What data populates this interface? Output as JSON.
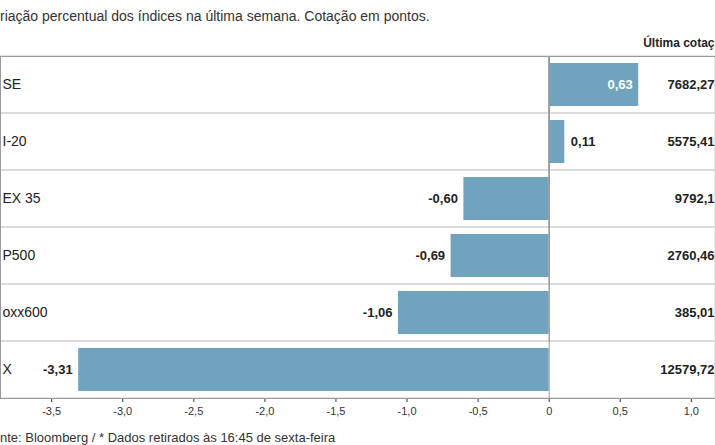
{
  "chart_data": {
    "type": "bar",
    "orientation": "horizontal",
    "subtitle": "riação percentual dos índices na última semana. Cotação em pontos.",
    "caption": "nte: Bloomberg / * Dados retirados às 16:45 de sexta-feira",
    "categories": [
      "SE",
      "I-20",
      "EX 35",
      "P500",
      "oxx600",
      "X"
    ],
    "values": [
      0.63,
      0.11,
      -0.6,
      -0.69,
      -1.06,
      -3.31
    ],
    "value_labels": [
      "0,63",
      "0,11",
      "-0,60",
      "-0,69",
      "-1,06",
      "-3,31"
    ],
    "data_labels": true,
    "last_quote_header": "Última cotaç",
    "last_quote": [
      "7682,27",
      "5575,41",
      "9792,1",
      "2760,46",
      "385,01",
      "12579,72"
    ],
    "color": "#6fa3be",
    "xlim": [
      -3.86,
      1.17
    ],
    "xticks": [
      {
        "value": -3.5,
        "label": "-3,5"
      },
      {
        "value": -3.0,
        "label": "-3,0"
      },
      {
        "value": -2.5,
        "label": "-2,5"
      },
      {
        "value": -2.0,
        "label": "-2,0"
      },
      {
        "value": -1.5,
        "label": "-1,5"
      },
      {
        "value": -1.0,
        "label": "-1,0"
      },
      {
        "value": -0.5,
        "label": "-0,5"
      },
      0,
      {
        "value": 0.5,
        "label": "0,5"
      },
      {
        "value": 1.0,
        "label": "1,0"
      }
    ],
    "grid": false
  }
}
